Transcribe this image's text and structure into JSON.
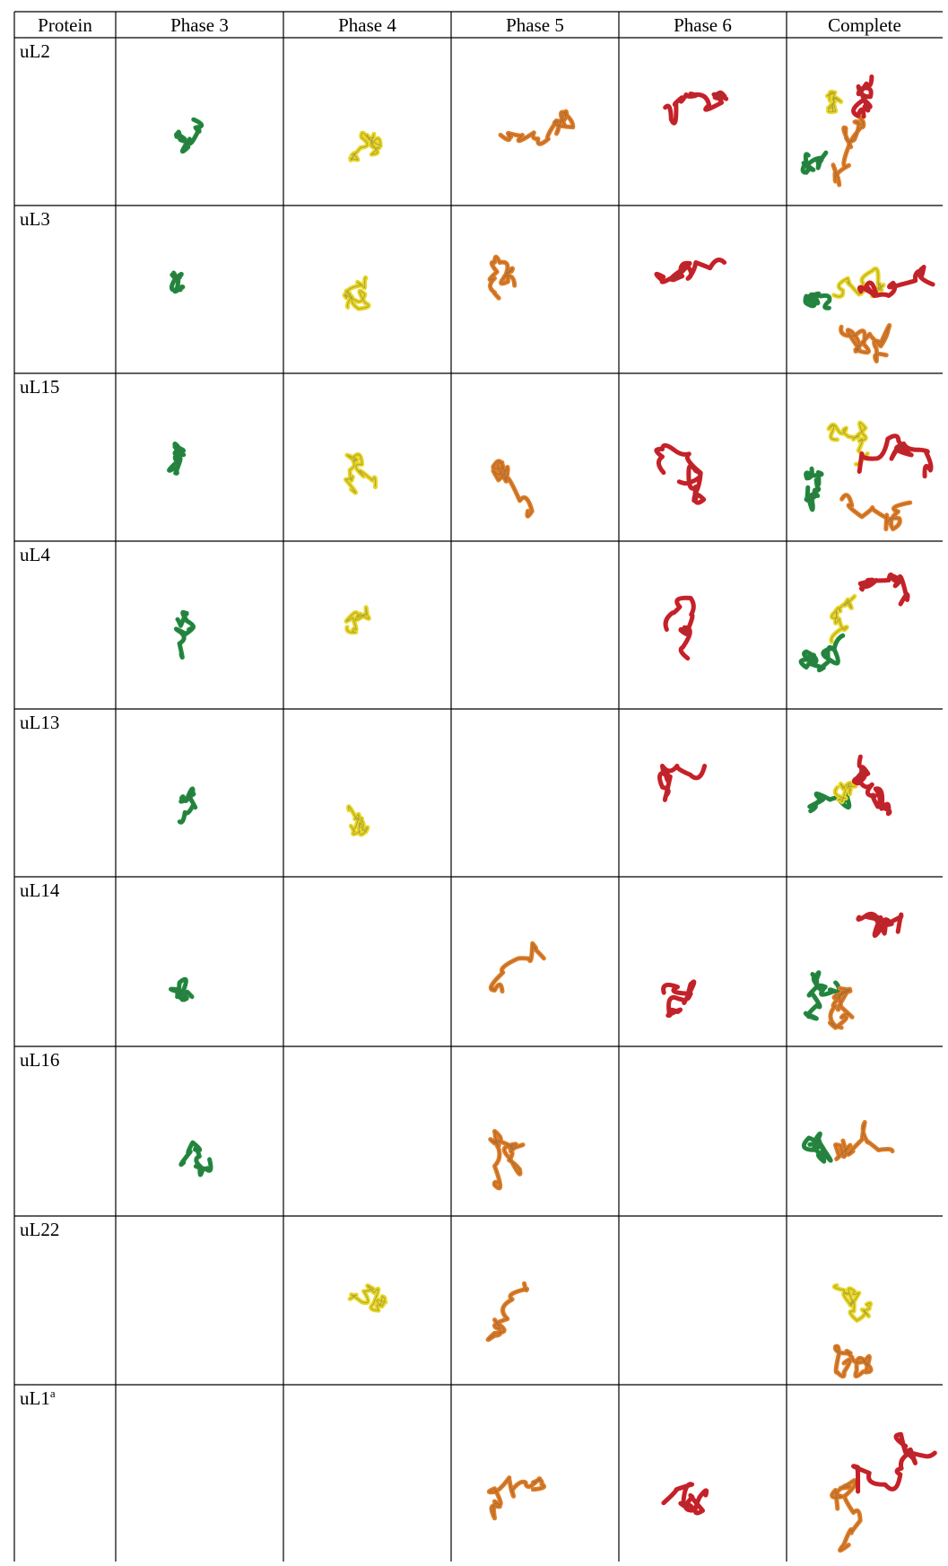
{
  "table": {
    "header": [
      "Protein",
      "Phase 3",
      "Phase 4",
      "Phase 5",
      "Phase 6",
      "Complete"
    ],
    "rows": [
      "uL2",
      "uL3",
      "uL15",
      "uL4",
      "uL13",
      "uL14",
      "uL16",
      "uL22",
      "uL1"
    ],
    "superscript": {
      "row": 8,
      "text": "a"
    }
  }
}
